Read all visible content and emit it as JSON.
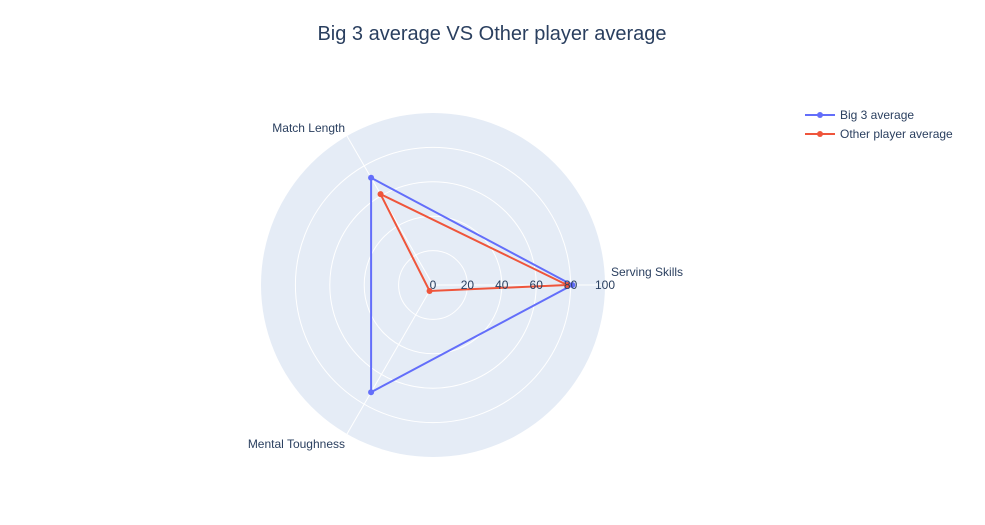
{
  "chart_data": {
    "type": "radar",
    "title": "Big 3 average VS Other player average",
    "theta": [
      "Serving Skills",
      "Match Length",
      "Mental Toughness"
    ],
    "radial_range": [
      0,
      100
    ],
    "radial_ticks": [
      "0",
      "20",
      "40",
      "60",
      "80",
      "100"
    ],
    "legend_position": "top-right",
    "series": [
      {
        "name": "Big 3 average",
        "values": [
          81,
          72,
          72
        ],
        "color": "#636efa"
      },
      {
        "name": "Other player average",
        "values": [
          78,
          61,
          4
        ],
        "color": "#ef553b"
      }
    ]
  }
}
